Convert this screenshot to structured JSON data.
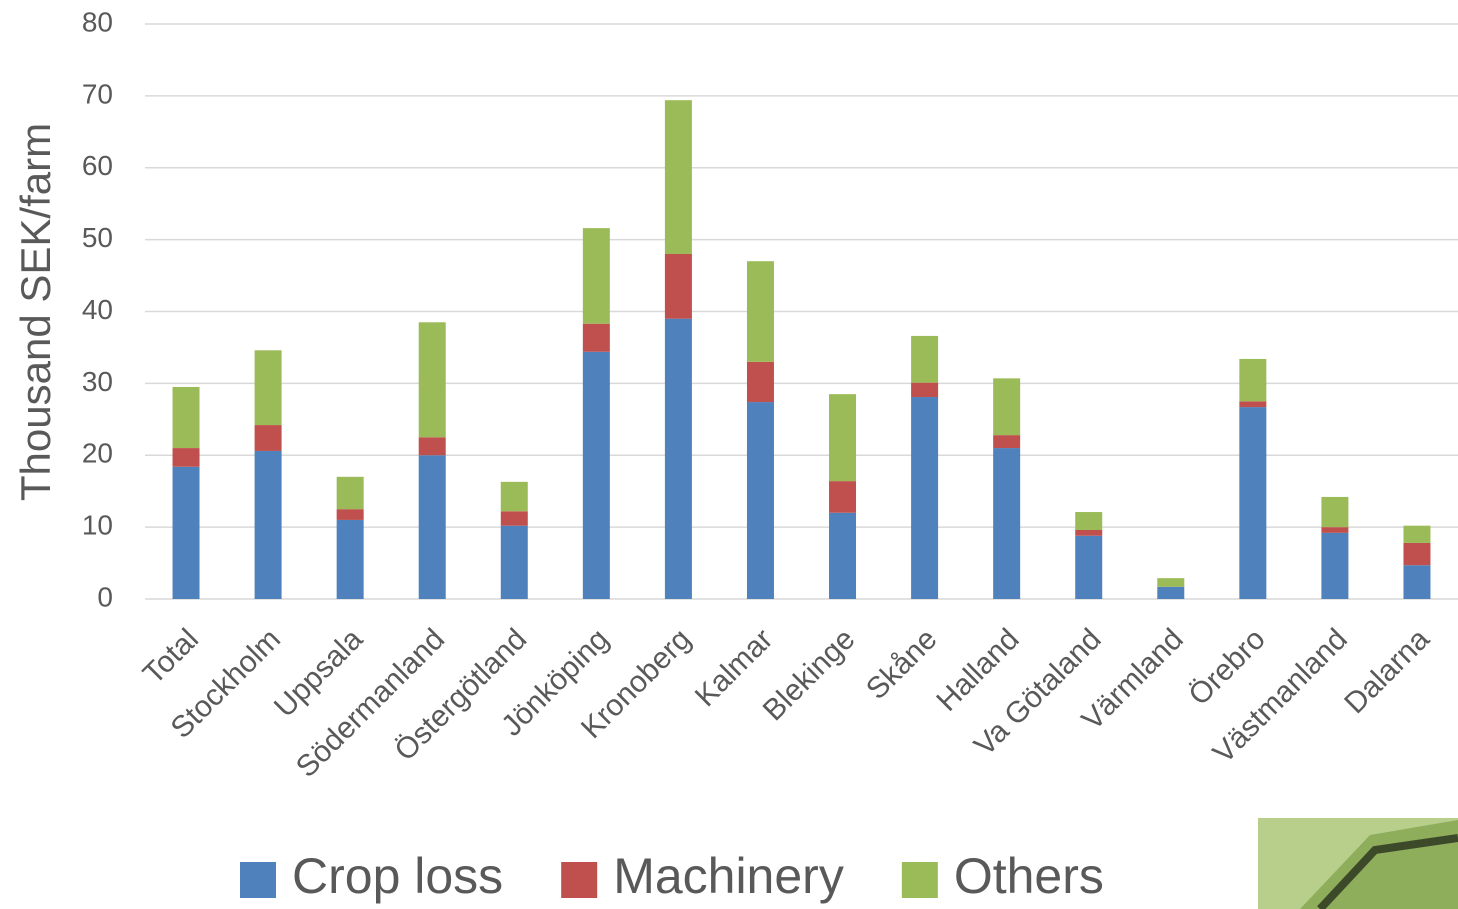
{
  "chart_data": {
    "type": "stacked_bar",
    "y_label": "Thousand SEK/farm",
    "categories": [
      "Total",
      "Stockholm",
      "Uppsala",
      "Södermanland",
      "Östergötland",
      "Jönköping",
      "Kronoberg",
      "Kalmar",
      "Blekinge",
      "Skåne",
      "Halland",
      "Va Götaland",
      "Värmland",
      "Örebro",
      "Västmanland",
      "Dalarna"
    ],
    "series": [
      {
        "name": "Crop loss",
        "color": "#4f81bd",
        "values": [
          18.4,
          20.6,
          11.0,
          20.0,
          10.2,
          34.4,
          39.0,
          27.4,
          12.0,
          28.1,
          21.0,
          8.8,
          1.7,
          26.7,
          9.2,
          4.7
        ]
      },
      {
        "name": "Machinery",
        "color": "#c0504d",
        "values": [
          2.6,
          3.6,
          1.5,
          2.5,
          2.0,
          3.9,
          9.0,
          5.6,
          4.4,
          2.0,
          1.8,
          0.8,
          0,
          0.8,
          0.8,
          3.1
        ]
      },
      {
        "name": "Others",
        "color": "#9bbb59",
        "values": [
          8.5,
          10.4,
          4.5,
          16.0,
          4.1,
          13.3,
          21.4,
          14.0,
          12.1,
          6.5,
          7.9,
          2.5,
          1.2,
          5.9,
          4.2,
          2.4
        ]
      }
    ],
    "ylim": [
      0,
      80
    ],
    "yticks": [
      0,
      10,
      20,
      30,
      40,
      50,
      60,
      70,
      80
    ],
    "grid": true,
    "legend": "bottom"
  }
}
